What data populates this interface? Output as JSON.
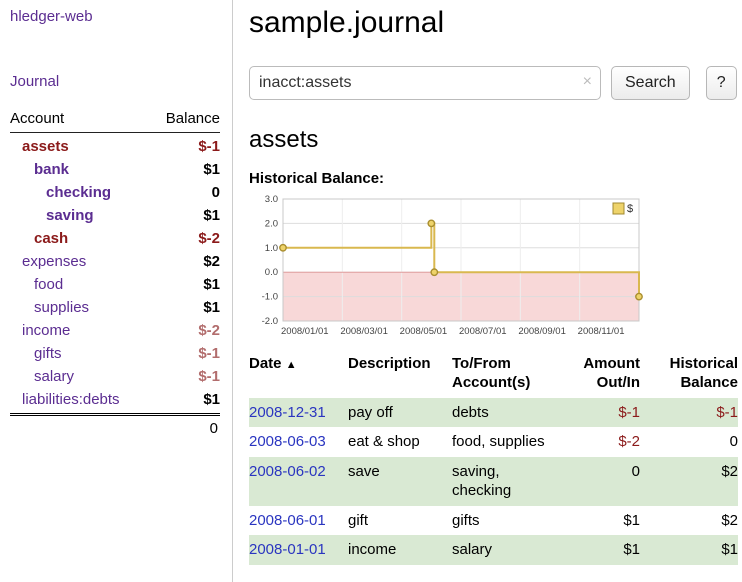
{
  "app": {
    "title": "hledger-web"
  },
  "colors": {
    "link_purple": "#5b2d91",
    "negative_strong": "#8b1a1a",
    "negative_soft": "#b26d6d",
    "date_link_blue": "#2a35c0",
    "row_green": "#d9e9d3"
  },
  "sidebar": {
    "journal_link": "Journal",
    "accounts": {
      "header_account": "Account",
      "header_balance": "Balance",
      "rows": [
        {
          "account": "assets",
          "balance": "$-1",
          "indent": 0,
          "bold": true,
          "account_class": "neg",
          "balance_class": "neg"
        },
        {
          "account": "bank",
          "balance": "$1",
          "indent": 1,
          "bold": true,
          "account_class": "",
          "balance_class": ""
        },
        {
          "account": "checking",
          "balance": "0",
          "indent": 2,
          "bold": true,
          "account_class": "",
          "balance_class": ""
        },
        {
          "account": "saving",
          "balance": "$1",
          "indent": 2,
          "bold": true,
          "account_class": "",
          "balance_class": ""
        },
        {
          "account": "cash",
          "balance": "$-2",
          "indent": 1,
          "bold": true,
          "account_class": "neg",
          "balance_class": "neg"
        },
        {
          "account": "expenses",
          "balance": "$2",
          "indent": 0,
          "bold": false,
          "account_class": "",
          "balance_class": ""
        },
        {
          "account": "food",
          "balance": "$1",
          "indent": 1,
          "bold": false,
          "account_class": "",
          "balance_class": ""
        },
        {
          "account": "supplies",
          "balance": "$1",
          "indent": 1,
          "bold": false,
          "account_class": "",
          "balance_class": ""
        },
        {
          "account": "income",
          "balance": "$-2",
          "indent": 0,
          "bold": false,
          "account_class": "",
          "balance_class": "neg-soft"
        },
        {
          "account": "gifts",
          "balance": "$-1",
          "indent": 1,
          "bold": false,
          "account_class": "",
          "balance_class": "neg-soft"
        },
        {
          "account": "salary",
          "balance": "$-1",
          "indent": 1,
          "bold": false,
          "account_class": "",
          "balance_class": "neg-soft"
        },
        {
          "account": "liabilities:debts",
          "balance": "$1",
          "indent": 0,
          "bold": false,
          "account_class": "",
          "balance_class": ""
        }
      ],
      "total": "0"
    }
  },
  "main": {
    "title": "sample.journal",
    "search": {
      "value": "inacct:assets",
      "clear_icon": "×",
      "button_label": "Search",
      "help_label": "?"
    },
    "account_heading": "assets",
    "chart_heading": "Historical Balance:"
  },
  "chart_data": {
    "type": "line",
    "title": "Historical Balance:",
    "ylim": [
      -2.0,
      3.0
    ],
    "yticks": [
      3.0,
      2.0,
      1.0,
      0.0,
      -1.0,
      -2.0
    ],
    "x_domain_months": [
      0,
      12
    ],
    "xticks": [
      {
        "pos": 0,
        "label": "2008/01/01"
      },
      {
        "pos": 2,
        "label": "2008/03/01"
      },
      {
        "pos": 4,
        "label": "2008/05/01"
      },
      {
        "pos": 6,
        "label": "2008/07/01"
      },
      {
        "pos": 8,
        "label": "2008/09/01"
      },
      {
        "pos": 10,
        "label": "2008/11/01"
      }
    ],
    "grid": true,
    "legend_position": "top-right",
    "negative_fill": "#f8d8d8",
    "zero_line_color": "#e39c9c",
    "series": [
      {
        "name": "$",
        "color": "#d9b84f",
        "marker_fill": "#eed36a",
        "marker_stroke": "#a98e2f",
        "step_points": [
          [
            0,
            1
          ],
          [
            5,
            1
          ],
          [
            5,
            2
          ],
          [
            5.1,
            2
          ],
          [
            5.1,
            0
          ],
          [
            12,
            0
          ],
          [
            12,
            -1
          ]
        ],
        "markers": [
          [
            0,
            1
          ],
          [
            5,
            2
          ],
          [
            5.1,
            0
          ],
          [
            12,
            -1
          ]
        ]
      }
    ]
  },
  "register": {
    "headers": {
      "date": "Date",
      "sort_indicator": "▲",
      "description": "Description",
      "account": "To/From Account(s)",
      "amount": "Amount Out/In",
      "balance": "Historical Balance"
    },
    "rows": [
      {
        "date": "2008-12-31",
        "description": "pay off",
        "accounts": "debts",
        "amount": "$-1",
        "balance": "$-1",
        "amount_neg": true,
        "balance_neg": true,
        "green": true
      },
      {
        "date": "2008-06-03",
        "description": "eat & shop",
        "accounts": "food, supplies",
        "amount": "$-2",
        "balance": "0",
        "amount_neg": true,
        "balance_neg": false,
        "green": false
      },
      {
        "date": "2008-06-02",
        "description": "save",
        "accounts": "saving, checking",
        "amount": "0",
        "balance": "$2",
        "amount_neg": false,
        "balance_neg": false,
        "green": true
      },
      {
        "date": "2008-06-01",
        "description": "gift",
        "accounts": "gifts",
        "amount": "$1",
        "balance": "$2",
        "amount_neg": false,
        "balance_neg": false,
        "green": false
      },
      {
        "date": "2008-01-01",
        "description": "income",
        "accounts": "salary",
        "amount": "$1",
        "balance": "$1",
        "amount_neg": false,
        "balance_neg": false,
        "green": true
      }
    ]
  }
}
